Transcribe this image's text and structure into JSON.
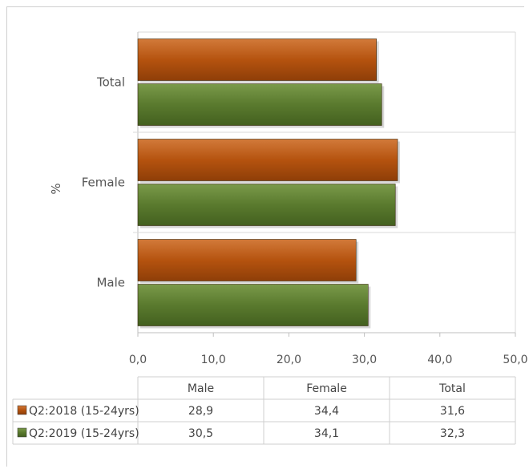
{
  "chart_data": {
    "type": "bar",
    "orientation": "horizontal",
    "categories": [
      "Male",
      "Female",
      "Total"
    ],
    "series": [
      {
        "name": "Q2:2018 (15-24yrs)",
        "values": [
          28.9,
          34.4,
          31.6
        ],
        "color": "#B5530F"
      },
      {
        "name": "Q2:2019 (15-24yrs)",
        "values": [
          30.5,
          34.1,
          32.3
        ],
        "color": "#5A7A2E"
      }
    ],
    "ylabel": "%",
    "xlim": [
      0,
      50
    ],
    "xticks": [
      "0,0",
      "10,0",
      "20,0",
      "30,0",
      "40,0",
      "50,0"
    ],
    "data_table": {
      "rows": [
        [
          "28,9",
          "34,4",
          "31,6"
        ],
        [
          "30,5",
          "34,1",
          "32,3"
        ]
      ]
    },
    "grid": "horizontal category separators",
    "legend": "in data table"
  }
}
